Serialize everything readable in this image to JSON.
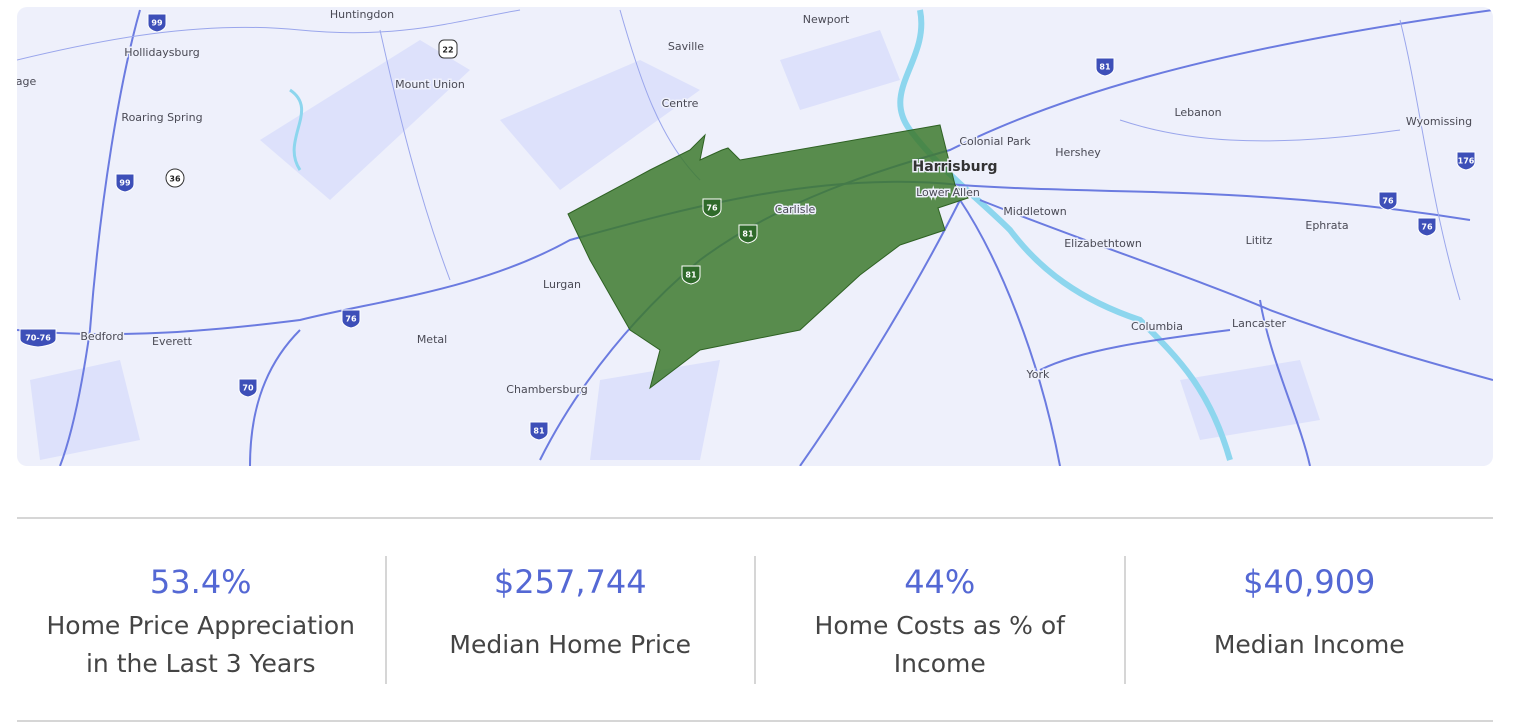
{
  "map": {
    "places": [
      "age",
      "Huntingdon",
      "Newport",
      "Hollidaysburg",
      "Saville",
      "Mount Union",
      "Centre",
      "Roaring Spring",
      "Colonial Park",
      "Hershey",
      "Lebanon",
      "Wyomissing",
      "Harrisburg",
      "Lower Allen",
      "Carlisle",
      "Middletown",
      "Elizabethtown",
      "Lititz",
      "Ephrata",
      "Lurgan",
      "Columbia",
      "Lancaster",
      "Bedford",
      "Everett",
      "Metal",
      "York",
      "Chambersburg"
    ],
    "shields": [
      "99",
      "22",
      "99",
      "36",
      "81",
      "176",
      "76",
      "76",
      "76",
      "81",
      "81",
      "76",
      "70-76",
      "70",
      "81"
    ]
  },
  "stats": [
    {
      "value": "53.4%",
      "label": "Home Price Appreciation in the Last 3 Years"
    },
    {
      "value": "$257,744",
      "label": "Median Home Price"
    },
    {
      "value": "44%",
      "label": "Home Costs as % of Income"
    },
    {
      "value": "$40,909",
      "label": "Median Income"
    }
  ]
}
